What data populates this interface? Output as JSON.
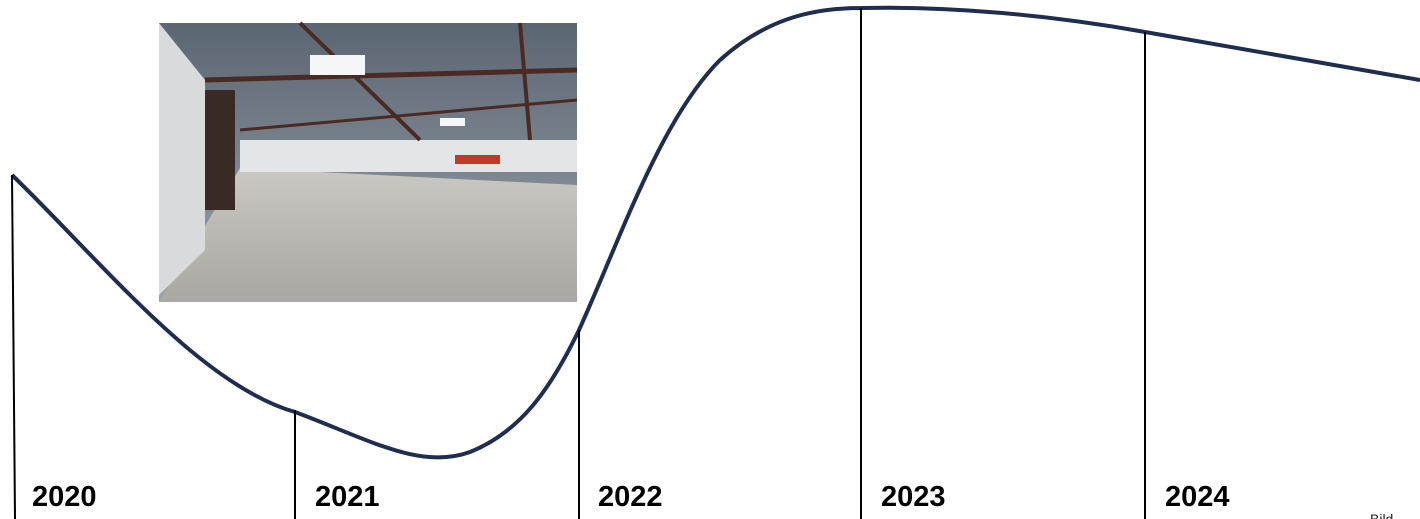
{
  "timeline": {
    "years": [
      "2020",
      "2021",
      "2022",
      "2023",
      "2024"
    ]
  },
  "caption": "Bild"
}
